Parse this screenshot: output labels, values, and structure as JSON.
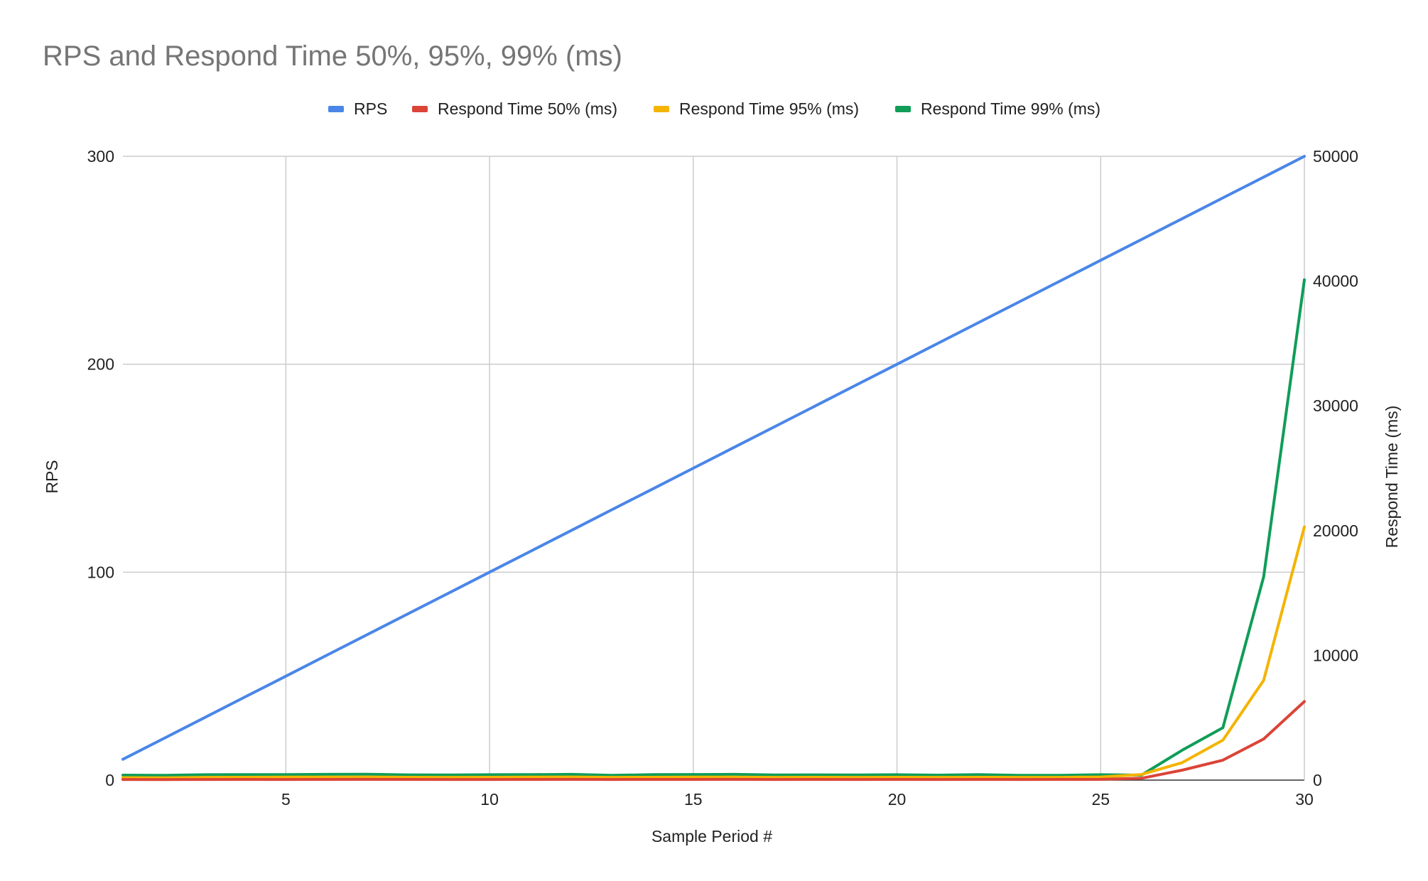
{
  "chart_data": {
    "type": "line",
    "title": "RPS and Respond Time 50%, 95%, 99% (ms)",
    "xlabel": "Sample Period #",
    "ylabel_left": "RPS",
    "ylabel_right": "Respond Time (ms)",
    "xlim": [
      1,
      30
    ],
    "xticks": [
      5,
      10,
      15,
      20,
      25,
      30
    ],
    "ylim_left": [
      0,
      300
    ],
    "yticks_left": [
      0,
      100,
      200,
      300
    ],
    "ylim_right": [
      0,
      50000
    ],
    "yticks_right": [
      0,
      10000,
      20000,
      30000,
      40000,
      50000
    ],
    "legend_position": "top",
    "grid": true,
    "x": [
      1,
      2,
      3,
      4,
      5,
      6,
      7,
      8,
      9,
      10,
      11,
      12,
      13,
      14,
      15,
      16,
      17,
      18,
      19,
      20,
      21,
      22,
      23,
      24,
      25,
      26,
      27,
      28,
      29,
      30
    ],
    "series": [
      {
        "name": "RPS",
        "axis": "left",
        "color": "#4a86e8",
        "values": [
          10,
          20,
          30,
          40,
          50,
          60,
          70,
          80,
          90,
          100,
          110,
          120,
          130,
          140,
          150,
          160,
          170,
          180,
          190,
          200,
          210,
          220,
          230,
          240,
          250,
          260,
          270,
          280,
          290,
          300
        ]
      },
      {
        "name": "Respond Time 50% (ms)",
        "axis": "right",
        "color": "#db4437",
        "values": [
          50,
          45,
          50,
          55,
          50,
          55,
          60,
          55,
          50,
          50,
          55,
          60,
          50,
          55,
          55,
          60,
          50,
          55,
          50,
          55,
          50,
          55,
          50,
          55,
          60,
          150,
          800,
          1600,
          3300,
          6300
        ]
      },
      {
        "name": "Respond Time 95% (ms)",
        "axis": "right",
        "color": "#f4b400",
        "values": [
          200,
          190,
          220,
          230,
          240,
          240,
          250,
          230,
          220,
          230,
          240,
          250,
          220,
          230,
          240,
          240,
          220,
          230,
          220,
          230,
          220,
          230,
          220,
          220,
          250,
          450,
          1400,
          3200,
          8000,
          20300
        ]
      },
      {
        "name": "Respond Time 99% (ms)",
        "axis": "right",
        "color": "#0f9d58",
        "values": [
          400,
          380,
          430,
          440,
          440,
          460,
          470,
          420,
          410,
          430,
          440,
          460,
          380,
          440,
          450,
          460,
          410,
          420,
          410,
          430,
          400,
          440,
          390,
          380,
          430,
          400,
          2400,
          4200,
          16300,
          40100
        ]
      }
    ]
  }
}
